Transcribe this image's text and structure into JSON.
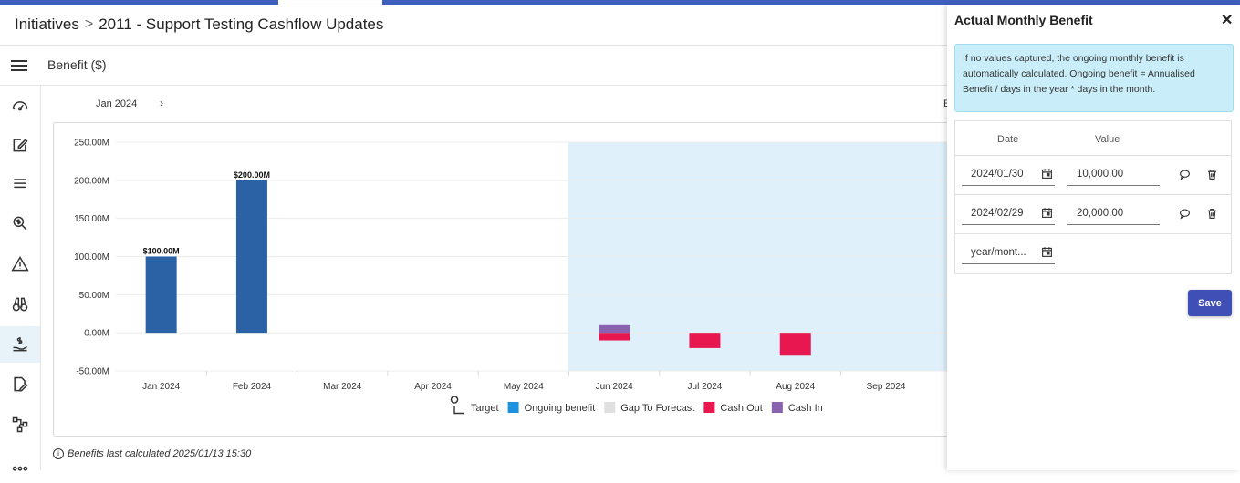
{
  "header": {
    "breadcrumb_root": "Initiatives",
    "breadcrumb_sep": ">",
    "breadcrumb_current": "2011 - Support Testing Cashflow Updates"
  },
  "subheader": {
    "title": "Benefit ($)"
  },
  "sidebar": {
    "items": [
      {
        "icon": "dashboard-icon"
      },
      {
        "icon": "edit-icon"
      },
      {
        "icon": "list-icon"
      },
      {
        "icon": "search-dollar-icon"
      },
      {
        "icon": "warning-icon"
      },
      {
        "icon": "binoculars-icon"
      },
      {
        "icon": "hand-dollar-icon",
        "active": true
      },
      {
        "icon": "document-edit-icon"
      },
      {
        "icon": "workflow-icon"
      },
      {
        "icon": "more-icon"
      }
    ]
  },
  "toolbar": {
    "period_label": "Jan 2024",
    "next_label": "›",
    "edge_text": "E"
  },
  "chart_data": {
    "type": "bar",
    "categories": [
      "Jan 2024",
      "Feb 2024",
      "Mar 2024",
      "Apr 2024",
      "May 2024",
      "Jun 2024",
      "Jul 2024",
      "Aug 2024",
      "Sep 2024"
    ],
    "y_tick_labels": [
      "250.00M",
      "200.00M",
      "150.00M",
      "100.00M",
      "50.00M",
      "0.00M",
      "-50.00M"
    ],
    "ylim": [
      -50000000,
      250000000
    ],
    "forecast_start_index": 5,
    "series": [
      {
        "name": "Target",
        "values": [
          null,
          null,
          null,
          null,
          null,
          null,
          null,
          null,
          null
        ]
      },
      {
        "name": "Ongoing benefit",
        "values": [
          100000000,
          200000000,
          0,
          0,
          0,
          0,
          0,
          0,
          0
        ]
      },
      {
        "name": "Gap To Forecast",
        "values": [
          null,
          null,
          null,
          null,
          null,
          null,
          null,
          null,
          null
        ]
      },
      {
        "name": "Cash Out",
        "values": [
          0,
          0,
          0,
          0,
          0,
          -10000000,
          -20000000,
          -30000000,
          0
        ]
      },
      {
        "name": "Cash In",
        "values": [
          0,
          0,
          0,
          0,
          0,
          10000000,
          0,
          0,
          0
        ]
      }
    ],
    "data_labels": [
      "$100.00M",
      "$200.00M"
    ],
    "colors": {
      "ongoing": "#2b62a6",
      "cash_out": "#e8174f",
      "cash_in": "#8a63b0",
      "gap": "#e0e0e0",
      "legend_ongoing": "#1e90e0",
      "forecast_bg": "#dff0fb"
    },
    "legend": {
      "position": "bottom",
      "entries": [
        {
          "label": "Target",
          "icon": "target-icon"
        },
        {
          "label": "Ongoing benefit",
          "color": "#1e90e0"
        },
        {
          "label": "Gap To Forecast",
          "color": "#e0e0e0"
        },
        {
          "label": "Cash Out",
          "color": "#e8174f"
        },
        {
          "label": "Cash In",
          "color": "#8a63b0"
        }
      ]
    }
  },
  "footer": {
    "info_icon": "i",
    "calculated_text": "Benefits last calculated 2025/01/13 15:30"
  },
  "panel": {
    "title": "Actual Monthly Benefit",
    "close": "✕",
    "info_text": "If no values captured, the ongoing monthly benefit is automatically calculated. Ongoing benefit = Annualised Benefit / days in the year * days in the month.",
    "col_date": "Date",
    "col_value": "Value",
    "rows": [
      {
        "date": "2024/01/30",
        "value": "10,000.00"
      },
      {
        "date": "2024/02/29",
        "value": "20,000.00"
      }
    ],
    "new_date_placeholder": "year/mont...",
    "save_label": "Save"
  }
}
